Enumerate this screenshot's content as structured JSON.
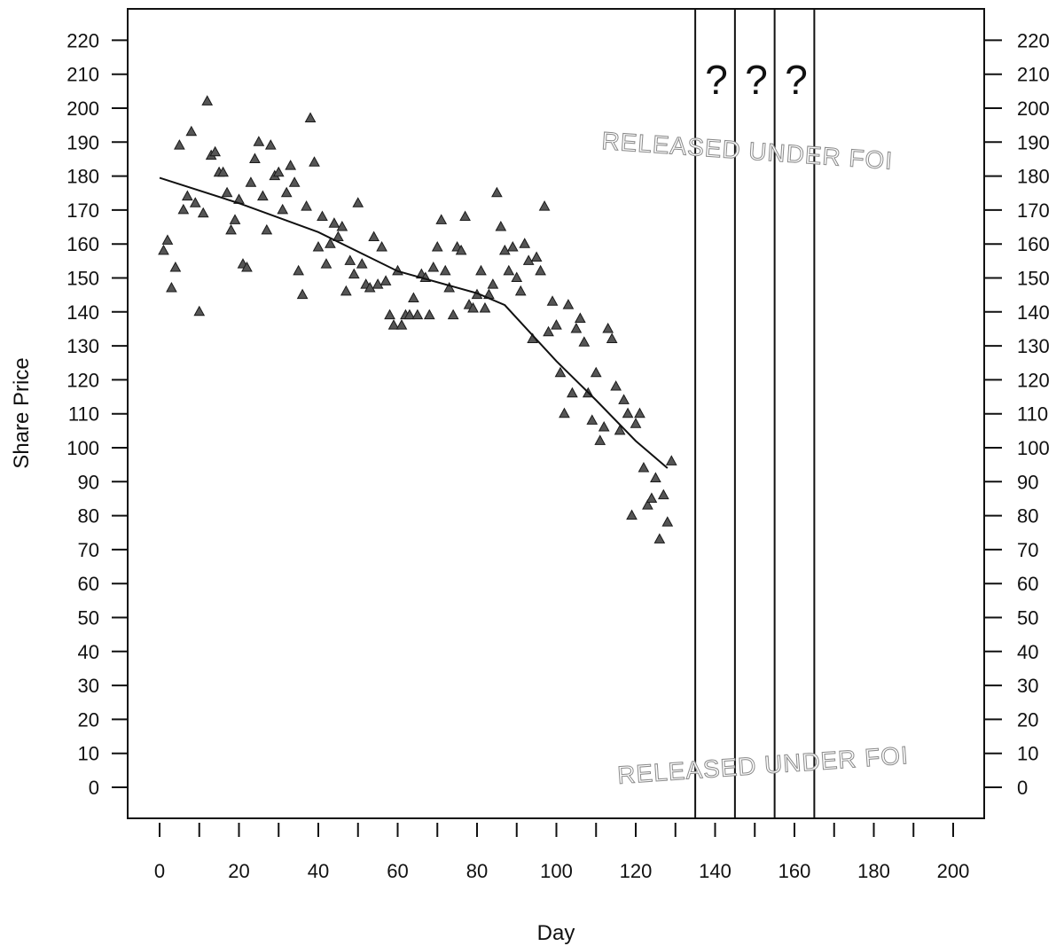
{
  "chart_data": {
    "type": "scatter",
    "xlabel": "Day",
    "ylabel": "Share Price",
    "xlim": [
      -8,
      207
    ],
    "ylim": [
      -9,
      230
    ],
    "x_ticks": [
      0,
      20,
      40,
      60,
      80,
      100,
      120,
      140,
      160,
      180,
      200
    ],
    "y_ticks": [
      0,
      10,
      20,
      30,
      40,
      50,
      60,
      70,
      80,
      90,
      100,
      110,
      120,
      130,
      140,
      150,
      160,
      170,
      180,
      190,
      200,
      210,
      220
    ],
    "right_axis_ticks": [
      0,
      10,
      20,
      30,
      40,
      50,
      60,
      70,
      80,
      90,
      100,
      110,
      120,
      130,
      140,
      150,
      160,
      170,
      180,
      190,
      200,
      210,
      220
    ],
    "series": [
      {
        "marker": "triangle",
        "points": [
          [
            1,
            158
          ],
          [
            2,
            161
          ],
          [
            3,
            147
          ],
          [
            4,
            153
          ],
          [
            5,
            189
          ],
          [
            6,
            170
          ],
          [
            7,
            174
          ],
          [
            8,
            193
          ],
          [
            9,
            172
          ],
          [
            10,
            140
          ],
          [
            11,
            169
          ],
          [
            12,
            202
          ],
          [
            13,
            186
          ],
          [
            14,
            187
          ],
          [
            15,
            181
          ],
          [
            16,
            181
          ],
          [
            17,
            175
          ],
          [
            18,
            164
          ],
          [
            19,
            167
          ],
          [
            20,
            173
          ],
          [
            21,
            154
          ],
          [
            22,
            153
          ],
          [
            23,
            178
          ],
          [
            24,
            185
          ],
          [
            25,
            190
          ],
          [
            26,
            174
          ],
          [
            27,
            164
          ],
          [
            28,
            189
          ],
          [
            29,
            180
          ],
          [
            30,
            181
          ],
          [
            31,
            170
          ],
          [
            32,
            175
          ],
          [
            33,
            183
          ],
          [
            34,
            178
          ],
          [
            35,
            152
          ],
          [
            36,
            145
          ],
          [
            37,
            171
          ],
          [
            38,
            197
          ],
          [
            39,
            184
          ],
          [
            40,
            159
          ],
          [
            41,
            168
          ],
          [
            42,
            154
          ],
          [
            43,
            160
          ],
          [
            44,
            166
          ],
          [
            45,
            162
          ],
          [
            46,
            165
          ],
          [
            47,
            146
          ],
          [
            48,
            155
          ],
          [
            49,
            151
          ],
          [
            50,
            172
          ],
          [
            51,
            154
          ],
          [
            52,
            148
          ],
          [
            53,
            147
          ],
          [
            54,
            162
          ],
          [
            55,
            148
          ],
          [
            56,
            159
          ],
          [
            57,
            149
          ],
          [
            58,
            139
          ],
          [
            59,
            136
          ],
          [
            60,
            152
          ],
          [
            61,
            136
          ],
          [
            62,
            139
          ],
          [
            63,
            139
          ],
          [
            64,
            144
          ],
          [
            65,
            139
          ],
          [
            66,
            151
          ],
          [
            67,
            150
          ],
          [
            68,
            139
          ],
          [
            69,
            153
          ],
          [
            70,
            159
          ],
          [
            71,
            167
          ],
          [
            72,
            152
          ],
          [
            73,
            147
          ],
          [
            74,
            139
          ],
          [
            75,
            159
          ],
          [
            76,
            158
          ],
          [
            77,
            168
          ],
          [
            78,
            142
          ],
          [
            79,
            141
          ],
          [
            80,
            145
          ],
          [
            81,
            152
          ],
          [
            82,
            141
          ],
          [
            83,
            145
          ],
          [
            84,
            148
          ],
          [
            85,
            175
          ],
          [
            86,
            165
          ],
          [
            87,
            158
          ],
          [
            88,
            152
          ],
          [
            89,
            159
          ],
          [
            90,
            150
          ],
          [
            91,
            146
          ],
          [
            92,
            160
          ],
          [
            93,
            155
          ],
          [
            94,
            132
          ],
          [
            95,
            156
          ],
          [
            96,
            152
          ],
          [
            97,
            171
          ],
          [
            98,
            134
          ],
          [
            99,
            143
          ],
          [
            100,
            136
          ],
          [
            101,
            122
          ],
          [
            102,
            110
          ],
          [
            103,
            142
          ],
          [
            104,
            116
          ],
          [
            105,
            135
          ],
          [
            106,
            138
          ],
          [
            107,
            131
          ],
          [
            108,
            116
          ],
          [
            109,
            108
          ],
          [
            110,
            122
          ],
          [
            111,
            102
          ],
          [
            112,
            106
          ],
          [
            113,
            135
          ],
          [
            114,
            132
          ],
          [
            115,
            118
          ],
          [
            116,
            105
          ],
          [
            117,
            114
          ],
          [
            118,
            110
          ],
          [
            119,
            80
          ],
          [
            120,
            107
          ],
          [
            121,
            110
          ],
          [
            122,
            94
          ],
          [
            123,
            83
          ],
          [
            124,
            85
          ],
          [
            125,
            91
          ],
          [
            126,
            73
          ],
          [
            127,
            86
          ],
          [
            128,
            78
          ],
          [
            129,
            96
          ]
        ]
      }
    ],
    "trend_line": [
      [
        0,
        179.5
      ],
      [
        20,
        172
      ],
      [
        40,
        163.5
      ],
      [
        60,
        152
      ],
      [
        80,
        145.5
      ],
      [
        87,
        142
      ],
      [
        100,
        125.5
      ],
      [
        110,
        114
      ],
      [
        120,
        102
      ],
      [
        128,
        94
      ]
    ],
    "vertical_lines_x": [
      135,
      145,
      155,
      165
    ],
    "annotations": [
      "?",
      "?",
      "?"
    ],
    "stamps": [
      "RELEASED UNDER FOI",
      "RELEASED UNDER FOI"
    ]
  }
}
